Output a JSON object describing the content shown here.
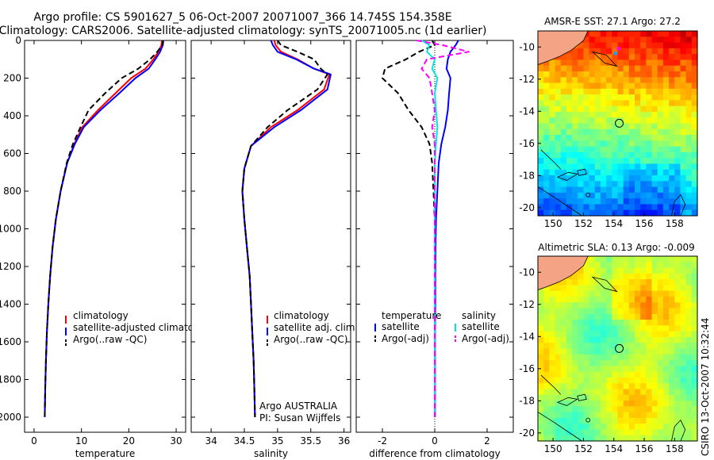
{
  "header": {
    "line1": "Argo profile: CS 5901627_5 06-Oct-2007 20071007_366 14.745S 154.358E",
    "line2": "Climatology: CARS2006. Satellite-adjusted climatology: synTS_20071005.nc (1d earlier)"
  },
  "side_stamp": "CSIRO 13-Oct-2007 10:32:44",
  "colors": {
    "climatology": "#ff0000",
    "satellite": "#0000ff",
    "argo": "#000000",
    "salinity_sat": "#00e5e5",
    "salinity_argo": "#ff00ff",
    "land": "#f4a484"
  },
  "chart_data": [
    {
      "type": "line",
      "id": "temperature",
      "xlabel": "temperature",
      "ylabel": "",
      "xlim": [
        -2,
        32
      ],
      "ylim": [
        2080,
        0
      ],
      "x_ticks": [
        0,
        10,
        20,
        30
      ],
      "y_ticks": [
        0,
        200,
        400,
        600,
        800,
        1000,
        1200,
        1400,
        1600,
        1800,
        2000
      ],
      "series": [
        {
          "name": "climatology",
          "color": "#ff0000",
          "dash": "",
          "x": [
            27.0,
            26.9,
            26.2,
            25.2,
            23.5,
            20.5,
            17.2,
            13.5,
            10.2,
            8.5,
            7.0,
            5.6,
            4.6,
            3.9,
            3.4,
            3.0,
            2.7,
            2.5,
            2.35,
            2.25
          ],
          "y": [
            0,
            25,
            60,
            100,
            150,
            200,
            280,
            370,
            460,
            550,
            650,
            800,
            950,
            1100,
            1250,
            1400,
            1550,
            1700,
            1850,
            2000
          ]
        },
        {
          "name": "satellite-adjusted climatology",
          "color": "#0000ff",
          "dash": "",
          "x": [
            27.3,
            27.2,
            26.6,
            25.6,
            24.2,
            21.4,
            18.0,
            14.0,
            10.5,
            8.6,
            7.0,
            5.6,
            4.6,
            3.9,
            3.4,
            3.0,
            2.7,
            2.5,
            2.35,
            2.25
          ],
          "y": [
            0,
            25,
            60,
            100,
            150,
            200,
            280,
            370,
            460,
            550,
            650,
            800,
            950,
            1100,
            1250,
            1400,
            1550,
            1700,
            1850,
            2000
          ]
        },
        {
          "name": "Argo(..raw -QC)",
          "color": "#000000",
          "dash": "7,4",
          "x": [
            27.2,
            27.1,
            26.0,
            24.5,
            22.0,
            18.5,
            15.0,
            11.5,
            9.8,
            8.2,
            6.9,
            5.6,
            4.6,
            3.9,
            3.4,
            3.0,
            2.7,
            2.5,
            2.35,
            2.25
          ],
          "y": [
            0,
            25,
            60,
            100,
            150,
            200,
            280,
            370,
            460,
            550,
            650,
            800,
            950,
            1100,
            1250,
            1400,
            1550,
            1700,
            1850,
            2000
          ]
        }
      ],
      "legend": {
        "position": "lower-center",
        "items": [
          "climatology",
          "satellite-adjusted climatology",
          "Argo(..raw -QC)"
        ]
      }
    },
    {
      "type": "line",
      "id": "salinity",
      "xlabel": "salinity",
      "ylabel": "",
      "xlim": [
        33.7,
        36.1
      ],
      "ylim": [
        2080,
        0
      ],
      "x_ticks": [
        34,
        34.5,
        35,
        35.5,
        36
      ],
      "series": [
        {
          "name": "climatology",
          "color": "#ff0000",
          "dash": "",
          "x": [
            34.95,
            34.97,
            35.05,
            35.3,
            35.55,
            35.78,
            35.7,
            35.3,
            34.9,
            34.6,
            34.5,
            34.47,
            34.5,
            34.54,
            34.58,
            34.6,
            34.62,
            34.64,
            34.65,
            34.66
          ],
          "y": [
            0,
            25,
            60,
            100,
            150,
            180,
            260,
            370,
            460,
            560,
            680,
            800,
            950,
            1100,
            1250,
            1400,
            1550,
            1700,
            1850,
            2000
          ]
        },
        {
          "name": "satellite adj. clim.",
          "color": "#0000ff",
          "dash": "",
          "x": [
            34.9,
            34.93,
            35.0,
            35.28,
            35.55,
            35.8,
            35.75,
            35.35,
            34.95,
            34.6,
            34.5,
            34.47,
            34.5,
            34.54,
            34.58,
            34.6,
            34.62,
            34.64,
            34.65,
            34.66
          ],
          "y": [
            0,
            25,
            60,
            100,
            150,
            180,
            260,
            370,
            460,
            560,
            680,
            800,
            950,
            1100,
            1250,
            1400,
            1550,
            1700,
            1850,
            2000
          ]
        },
        {
          "name": "Argo(..raw -QC)",
          "color": "#000000",
          "dash": "7,4",
          "x": [
            35.0,
            35.05,
            35.3,
            35.55,
            35.65,
            35.75,
            35.6,
            35.15,
            34.85,
            34.6,
            34.5,
            34.47,
            34.5,
            34.54,
            34.58,
            34.6,
            34.62,
            34.64,
            34.65,
            34.66
          ],
          "y": [
            0,
            25,
            60,
            100,
            150,
            180,
            260,
            370,
            460,
            560,
            680,
            800,
            950,
            1100,
            1250,
            1400,
            1550,
            1700,
            1850,
            2000
          ]
        }
      ],
      "legend": {
        "position": "lower-center",
        "items": [
          "climatology",
          "satellite adj. clim.",
          "Argo(..raw -QC)"
        ]
      },
      "annotation": [
        "Argo AUSTRALIA",
        "PI: Susan Wijffels"
      ]
    },
    {
      "type": "line",
      "id": "difference",
      "xlabel": "difference from climatology",
      "ylabel": "",
      "xlim": [
        -3,
        3
      ],
      "ylim": [
        2080,
        0
      ],
      "x_ticks": [
        -2,
        0,
        2
      ],
      "series": [
        {
          "name": "temperature satellite",
          "color": "#0000ff",
          "dash": "",
          "x": [
            0.9,
            0.8,
            0.6,
            0.5,
            0.45,
            0.6,
            0.55,
            0.5,
            0.4,
            0.25,
            0.15,
            0.1,
            0.05,
            0.03,
            0.02,
            0.02,
            0.01,
            0.01,
            0.01,
            0.01
          ],
          "y": [
            0,
            25,
            60,
            100,
            150,
            200,
            280,
            370,
            460,
            550,
            650,
            800,
            950,
            1100,
            1250,
            1400,
            1550,
            1700,
            1850,
            2000
          ]
        },
        {
          "name": "temperature Argo(-adj)",
          "color": "#000000",
          "dash": "7,4",
          "x": [
            -0.1,
            0.0,
            -0.6,
            -1.1,
            -1.9,
            -2.0,
            -1.4,
            -1.0,
            -0.5,
            -0.2,
            -0.1,
            -0.05,
            0.0,
            0.0,
            0.0,
            0.0,
            0.0,
            0.0,
            0.0,
            0.0
          ],
          "y": [
            0,
            25,
            60,
            100,
            150,
            200,
            280,
            370,
            460,
            550,
            650,
            800,
            950,
            1100,
            1250,
            1400,
            1550,
            1700,
            1850,
            2000
          ]
        },
        {
          "name": "salinity satellite",
          "color": "#00e5e5",
          "dash": "",
          "x": [
            -0.5,
            -0.2,
            -0.3,
            0.0,
            -0.1,
            0.1,
            0.0,
            0.05,
            0.1,
            0.05,
            0.0,
            0.0,
            0.0,
            0.0,
            0.0,
            0.0,
            0.0,
            0.0,
            0.0,
            0.0
          ],
          "y": [
            0,
            25,
            60,
            100,
            150,
            200,
            280,
            370,
            460,
            550,
            650,
            800,
            950,
            1100,
            1250,
            1400,
            1550,
            1700,
            1850,
            2000
          ]
        },
        {
          "name": "salinity Argo(-adj)",
          "color": "#ff00ff",
          "dash": "7,4",
          "x": [
            -0.7,
            0.3,
            1.3,
            -0.3,
            -0.5,
            -0.2,
            -0.1,
            0.0,
            -0.1,
            0.0,
            0.0,
            0.0,
            0.0,
            0.0,
            0.0,
            0.0,
            0.0,
            0.0,
            0.0,
            0.0
          ],
          "y": [
            0,
            25,
            60,
            100,
            150,
            200,
            280,
            370,
            460,
            550,
            650,
            800,
            950,
            1100,
            1250,
            1400,
            1550,
            1700,
            1850,
            2000
          ]
        }
      ],
      "legend": {
        "position": "lower-center",
        "column_heads": [
          "temperature",
          "salinity"
        ],
        "items": [
          "satellite",
          "Argo(-adj)",
          "satellite",
          "Argo(-adj)"
        ]
      }
    },
    {
      "type": "heatmap",
      "id": "sst_map",
      "title": "AMSR-E SST: 27.1 Argo: 27.2",
      "xlim": [
        149,
        159.5
      ],
      "ylim": [
        -20.5,
        -9
      ],
      "x_ticks": [
        150,
        152,
        154,
        156,
        158
      ],
      "y_ticks": [
        -10,
        -12,
        -14,
        -16,
        -18,
        -20
      ],
      "float_position": {
        "lon": 154.358,
        "lat": -14.745
      }
    },
    {
      "type": "heatmap",
      "id": "sla_map",
      "title": "Altimetric SLA: 0.13 Argo: -0.009",
      "xlim": [
        149,
        159.5
      ],
      "ylim": [
        -20.5,
        -9
      ],
      "x_ticks": [
        150,
        152,
        154,
        156,
        158
      ],
      "y_ticks": [
        -10,
        -12,
        -14,
        -16,
        -18,
        -20
      ],
      "float_position": {
        "lon": 154.358,
        "lat": -14.745
      }
    }
  ]
}
